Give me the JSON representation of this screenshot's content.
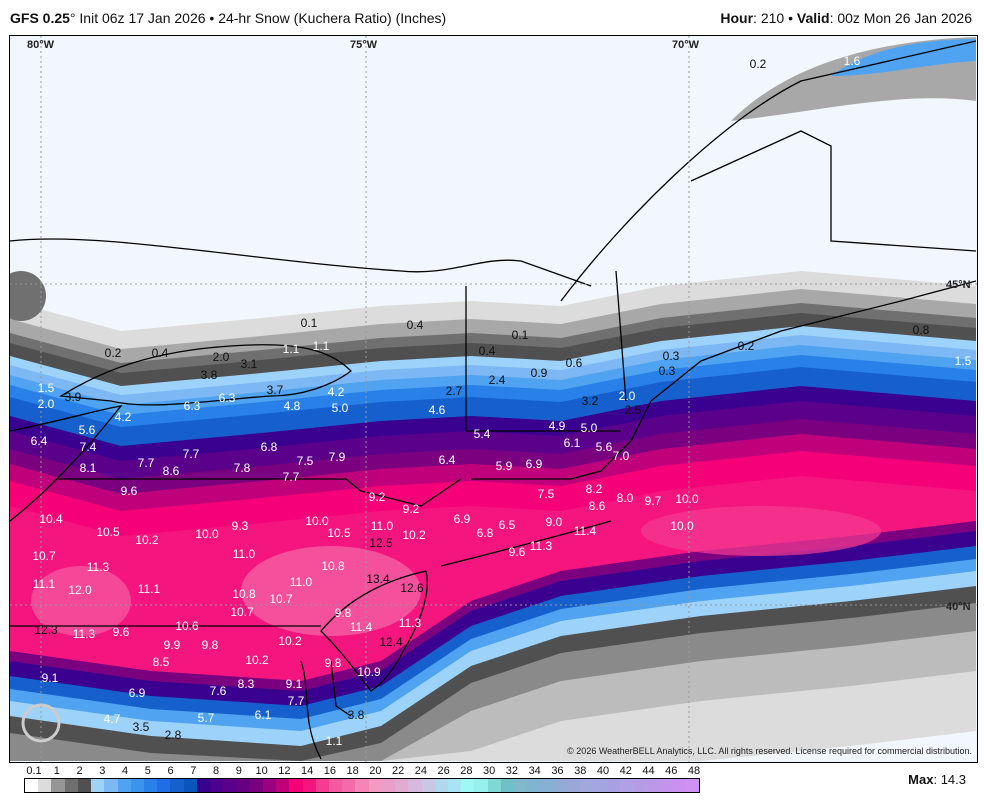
{
  "header": {
    "model": "GFS 0.25",
    "model_deg": "°",
    "init": " Init 06z 17 Jan 2026 • 24-hr Snow (Kuchera Ratio) (Inches)",
    "hour_label": "Hour",
    "hour_value": ": 210 • ",
    "valid_label": "Valid",
    "valid_value": ": 00z Mon 26 Jan 2026"
  },
  "grid_labels": {
    "lon80": "80°W",
    "lon75": "75°W",
    "lon70": "70°W",
    "lat45": "45°N",
    "lat40": "40°N"
  },
  "map": {
    "watermark": "WeatherBELL",
    "labels": [
      "0.2",
      "1.6",
      "0.1",
      "0.4",
      "0.1",
      "0.2",
      "0.4",
      "0.4",
      "0.6",
      "0.9",
      "0.3",
      "0.3",
      "0.2",
      "0.8",
      "1.5",
      "1.1",
      "1.1",
      "2.0",
      "3.1",
      "3.8",
      "3.7",
      "2.7",
      "2.4",
      "2.0",
      "2.5",
      "1.5",
      "2.0",
      "3.9",
      "4.2",
      "6.3",
      "6.3",
      "4.8",
      "4.2",
      "5.0",
      "4.6",
      "3.2",
      "4.9",
      "5.0",
      "5.6",
      "6.4",
      "7.4",
      "6.8",
      "6.1",
      "5.6",
      "7.0",
      "5.4",
      "6.4",
      "7.9",
      "7.7",
      "7.7",
      "7.8",
      "7.5",
      "7.7",
      "8.1",
      "8.6",
      "5.9",
      "6.9",
      "9.2",
      "9.2",
      "7.5",
      "8.2",
      "8.6",
      "8.0",
      "9.7",
      "10.0",
      "10.0",
      "9.6",
      "10.4",
      "10.5",
      "10.2",
      "10.0",
      "9.3",
      "10.0",
      "10.5",
      "11.0",
      "10.2",
      "12.5",
      "6.9",
      "6.8",
      "6.5",
      "9.0",
      "11.4",
      "11.3",
      "9.6",
      "10.7",
      "11.3",
      "11.0",
      "11.1",
      "12.0",
      "11.1",
      "10.8",
      "13.4",
      "12.6",
      "11.0",
      "10.8",
      "10.7",
      "10.7",
      "9.8",
      "11.4",
      "11.3",
      "12.3",
      "11.3",
      "9.6",
      "10.6",
      "9.9",
      "9.8",
      "10.2",
      "12.4",
      "8.5",
      "10.2",
      "9.8",
      "10.9",
      "9.1",
      "8.3",
      "7.6",
      "9.1",
      "6.9",
      "7.7",
      "4.7",
      "5.7",
      "6.1",
      "3.5",
      "2.8",
      "1.1",
      "3.8"
    ]
  },
  "copyright": "© 2026 WeatherBELL Analytics, LLC. All rights reserved. License required for commercial distribution.",
  "colorbar": {
    "labels": [
      "0.1",
      "1",
      "2",
      "3",
      "4",
      "5",
      "6",
      "7",
      "8",
      "9",
      "10",
      "12",
      "14",
      "16",
      "18",
      "20",
      "22",
      "24",
      "26",
      "28",
      "30",
      "32",
      "34",
      "36",
      "38",
      "40",
      "42",
      "44",
      "46",
      "48"
    ],
    "colors": [
      "#ffffff",
      "#dcdcdc",
      "#969696",
      "#6e6e6e",
      "#505050",
      "#9dd3fb",
      "#7db8f5",
      "#4fa3f0",
      "#3b93eb",
      "#2980e8",
      "#1f6ee6",
      "#1560cc",
      "#0a55bb",
      "#3a008f",
      "#4b0090",
      "#5a008a",
      "#660080",
      "#7a0080",
      "#9a0080",
      "#c0007a",
      "#f50078",
      "#f5157f",
      "#f53c92",
      "#f55aa0",
      "#f56aa8",
      "#f585b8",
      "#f59ac4",
      "#e8a0c8",
      "#e0acd0",
      "#d8b8dc",
      "#c8c8e4",
      "#b0d8ec",
      "#a8e4f4",
      "#9ef8f4",
      "#98f0ee",
      "#80d8d4",
      "#70c0c8",
      "#80b8cc",
      "#80b4d0",
      "#88b0d4",
      "#90acd4",
      "#98a8d8",
      "#a0a8dc",
      "#a4a4e0",
      "#a8a0e0",
      "#b0a0e4",
      "#b49ce4",
      "#bc98e8",
      "#c494ec",
      "#cc90f0",
      "#d090f4"
    ]
  },
  "max": {
    "label": "Max",
    "value": ": 14.3"
  }
}
